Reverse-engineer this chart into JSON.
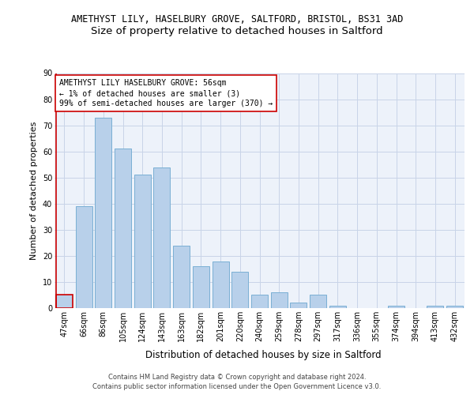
{
  "title1": "AMETHYST LILY, HASELBURY GROVE, SALTFORD, BRISTOL, BS31 3AD",
  "title2": "Size of property relative to detached houses in Saltford",
  "xlabel": "Distribution of detached houses by size in Saltford",
  "ylabel": "Number of detached properties",
  "categories": [
    "47sqm",
    "66sqm",
    "86sqm",
    "105sqm",
    "124sqm",
    "143sqm",
    "163sqm",
    "182sqm",
    "201sqm",
    "220sqm",
    "240sqm",
    "259sqm",
    "278sqm",
    "297sqm",
    "317sqm",
    "336sqm",
    "355sqm",
    "374sqm",
    "394sqm",
    "413sqm",
    "432sqm"
  ],
  "values": [
    5,
    39,
    73,
    61,
    51,
    54,
    24,
    16,
    18,
    14,
    5,
    6,
    2,
    5,
    1,
    0,
    0,
    1,
    0,
    1,
    1
  ],
  "bar_color": "#b8d0ea",
  "bar_edge_color": "#7aafd4",
  "highlight_bar_index": 0,
  "highlight_bar_edge_color": "#cc0000",
  "annotation_box_text": "AMETHYST LILY HASELBURY GROVE: 56sqm\n← 1% of detached houses are smaller (3)\n99% of semi-detached houses are larger (370) →",
  "annotation_box_edge_color": "#cc0000",
  "vline_color": "#cc0000",
  "ylim": [
    0,
    90
  ],
  "yticks": [
    0,
    10,
    20,
    30,
    40,
    50,
    60,
    70,
    80,
    90
  ],
  "footer1": "Contains HM Land Registry data © Crown copyright and database right 2024.",
  "footer2": "Contains public sector information licensed under the Open Government Licence v3.0.",
  "bg_color": "#edf2fa",
  "grid_color": "#c8d4e8",
  "title1_fontsize": 8.5,
  "title2_fontsize": 9.5,
  "xlabel_fontsize": 8.5,
  "ylabel_fontsize": 8,
  "tick_fontsize": 7,
  "annotation_fontsize": 7,
  "footer_fontsize": 6
}
